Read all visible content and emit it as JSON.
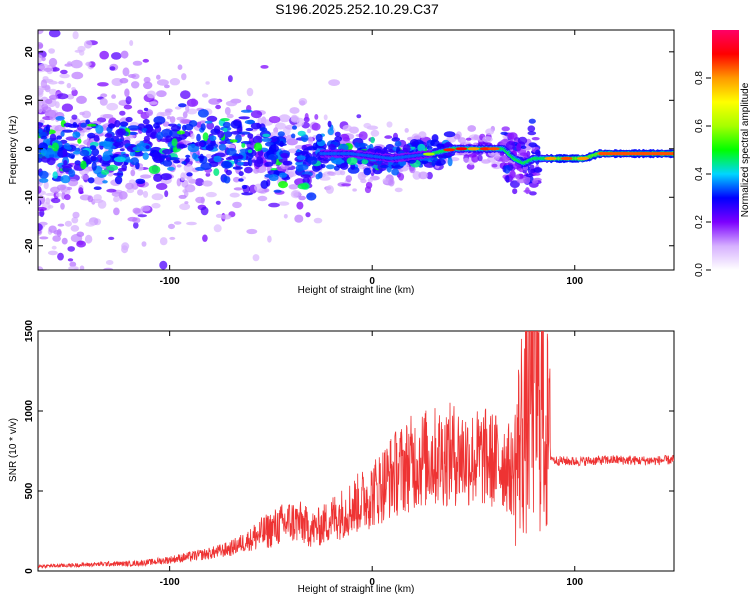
{
  "title": "S196.2025.252.10.29.C37",
  "chart_data": [
    {
      "type": "heatmap",
      "xlabel": "Height of straight line (km)",
      "ylabel": "Frequency (Hz)",
      "xlim": [
        -165,
        149
      ],
      "ylim": [
        -25,
        24.5
      ],
      "x_ticks": [
        -100,
        0,
        100
      ],
      "y_ticks": [
        -20,
        -10,
        0,
        10,
        20
      ],
      "ridge_frequency_hz": [
        [
          -165,
          1
        ],
        [
          -150,
          0
        ],
        [
          -135,
          -1
        ],
        [
          -120,
          0
        ],
        [
          -105,
          1
        ],
        [
          -90,
          1
        ],
        [
          -75,
          0
        ],
        [
          -60,
          -1
        ],
        [
          -45,
          -2
        ],
        [
          -30,
          -1
        ],
        [
          -20,
          -1
        ],
        [
          -10,
          -1
        ],
        [
          0,
          -1.5
        ],
        [
          10,
          -2
        ],
        [
          20,
          -1.5
        ],
        [
          30,
          -1
        ],
        [
          40,
          0
        ],
        [
          50,
          0
        ],
        [
          60,
          0
        ],
        [
          65,
          0
        ],
        [
          70,
          -2
        ],
        [
          75,
          -3
        ],
        [
          80,
          -2
        ],
        [
          85,
          -2
        ],
        [
          95,
          -2
        ],
        [
          105,
          -2
        ],
        [
          112,
          -1
        ],
        [
          130,
          -1
        ],
        [
          149,
          -1
        ]
      ],
      "colorbar": {
        "label": "Normalized spectral amplitude",
        "range": [
          0,
          1
        ],
        "ticks": [
          0.0,
          0.2,
          0.4,
          0.6,
          0.8
        ],
        "tick_labels": [
          "0.0",
          "0.2",
          "0.4",
          "0.6",
          "0.8"
        ],
        "colors": [
          "#ffffff",
          "#d6b0ff",
          "#7c00ff",
          "#0000ff",
          "#00d6ff",
          "#00ff00",
          "#a6ff00",
          "#ffff00",
          "#ff9900",
          "#ff0000",
          "#ff0066"
        ]
      }
    },
    {
      "type": "line",
      "xlabel": "Height of straight line (km)",
      "ylabel": "SNR (10 * v/v)",
      "xlim": [
        -165,
        149
      ],
      "ylim": [
        0,
        1500
      ],
      "x_ticks": [
        -100,
        0,
        100
      ],
      "y_ticks": [
        0,
        500,
        1000,
        1500
      ],
      "series": [
        {
          "name": "SNR",
          "color": "#ee3333",
          "x": [
            -165,
            -150,
            -140,
            -130,
            -120,
            -110,
            -100,
            -90,
            -80,
            -70,
            -60,
            -50,
            -45,
            -40,
            -35,
            -30,
            -25,
            -20,
            -15,
            -10,
            -5,
            0,
            5,
            10,
            15,
            20,
            25,
            30,
            35,
            40,
            45,
            50,
            55,
            60,
            65,
            70,
            72,
            74,
            76,
            78,
            80,
            82,
            84,
            86,
            88,
            90,
            100,
            110,
            120,
            130,
            140,
            149
          ],
          "values": [
            30,
            35,
            40,
            45,
            45,
            55,
            70,
            90,
            110,
            140,
            200,
            260,
            290,
            310,
            300,
            260,
            280,
            330,
            360,
            400,
            440,
            480,
            540,
            600,
            640,
            680,
            700,
            710,
            720,
            730,
            720,
            700,
            710,
            690,
            680,
            600,
            750,
            900,
            950,
            1150,
            1300,
            1000,
            1100,
            900,
            720,
            690,
            685,
            690,
            695,
            690,
            690,
            695
          ]
        }
      ]
    }
  ]
}
